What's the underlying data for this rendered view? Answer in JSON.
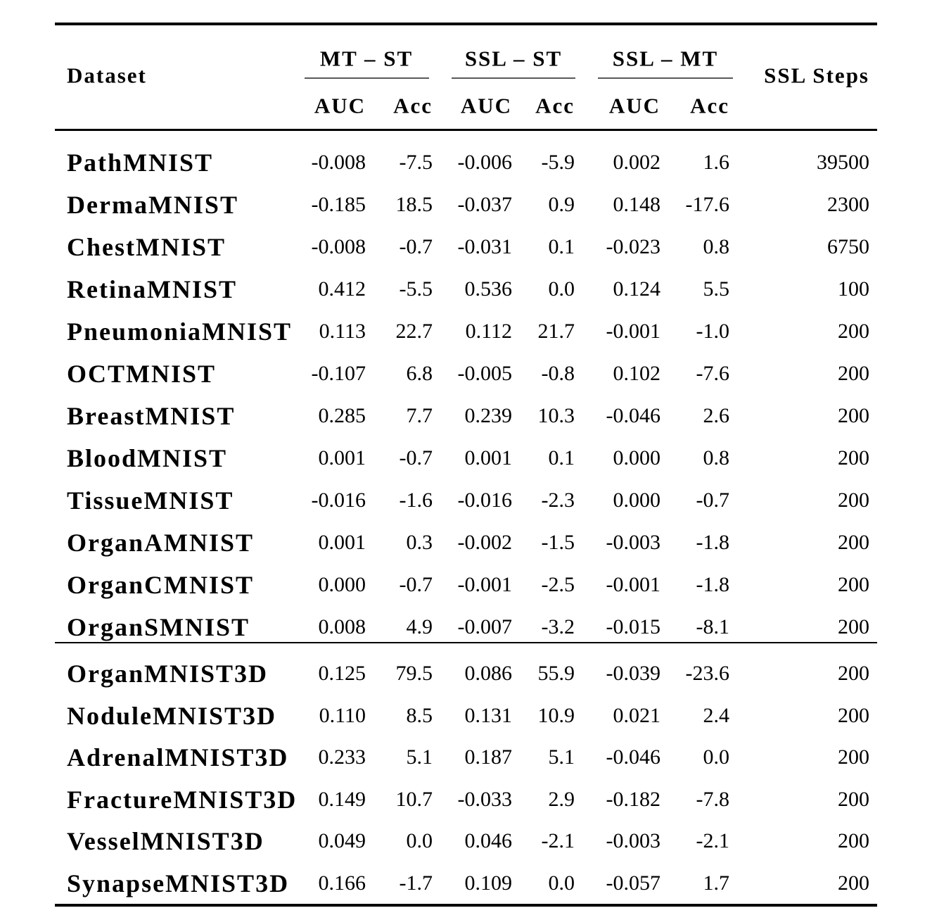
{
  "header": {
    "dataset_label": "Dataset",
    "groups": [
      {
        "label": "MT – ST"
      },
      {
        "label": "SSL – ST"
      },
      {
        "label": "SSL – MT"
      }
    ],
    "subheaders": [
      "AUC",
      "Acc",
      "AUC",
      "Acc",
      "AUC",
      "Acc"
    ],
    "steps_label": "SSL Steps"
  },
  "sections": [
    {
      "rows": [
        {
          "name": "PathMNIST",
          "values": [
            "-0.008",
            "-7.5",
            "-0.006",
            "-5.9",
            "0.002",
            "1.6"
          ],
          "steps": "39500"
        },
        {
          "name": "DermaMNIST",
          "values": [
            "-0.185",
            "18.5",
            "-0.037",
            "0.9",
            "0.148",
            "-17.6"
          ],
          "steps": "2300"
        },
        {
          "name": "ChestMNIST",
          "values": [
            "-0.008",
            "-0.7",
            "-0.031",
            "0.1",
            "-0.023",
            "0.8"
          ],
          "steps": "6750"
        },
        {
          "name": "RetinaMNIST",
          "values": [
            "0.412",
            "-5.5",
            "0.536",
            "0.0",
            "0.124",
            "5.5"
          ],
          "steps": "100"
        },
        {
          "name": "PneumoniaMNIST",
          "values": [
            "0.113",
            "22.7",
            "0.112",
            "21.7",
            "-0.001",
            "-1.0"
          ],
          "steps": "200"
        },
        {
          "name": "OCTMNIST",
          "values": [
            "-0.107",
            "6.8",
            "-0.005",
            "-0.8",
            "0.102",
            "-7.6"
          ],
          "steps": "200"
        },
        {
          "name": "BreastMNIST",
          "values": [
            "0.285",
            "7.7",
            "0.239",
            "10.3",
            "-0.046",
            "2.6"
          ],
          "steps": "200"
        },
        {
          "name": "BloodMNIST",
          "values": [
            "0.001",
            "-0.7",
            "0.001",
            "0.1",
            "0.000",
            "0.8"
          ],
          "steps": "200"
        },
        {
          "name": "TissueMNIST",
          "values": [
            "-0.016",
            "-1.6",
            "-0.016",
            "-2.3",
            "0.000",
            "-0.7"
          ],
          "steps": "200"
        },
        {
          "name": "OrganAMNIST",
          "values": [
            "0.001",
            "0.3",
            "-0.002",
            "-1.5",
            "-0.003",
            "-1.8"
          ],
          "steps": "200"
        },
        {
          "name": "OrganCMNIST",
          "values": [
            "0.000",
            "-0.7",
            "-0.001",
            "-2.5",
            "-0.001",
            "-1.8"
          ],
          "steps": "200"
        },
        {
          "name": "OrganSMNIST",
          "values": [
            "0.008",
            "4.9",
            "-0.007",
            "-3.2",
            "-0.015",
            "-8.1"
          ],
          "steps": "200"
        }
      ]
    },
    {
      "rows": [
        {
          "name": "OrganMNIST3D",
          "values": [
            "0.125",
            "79.5",
            "0.086",
            "55.9",
            "-0.039",
            "-23.6"
          ],
          "steps": "200"
        },
        {
          "name": "NoduleMNIST3D",
          "values": [
            "0.110",
            "8.5",
            "0.131",
            "10.9",
            "0.021",
            "2.4"
          ],
          "steps": "200"
        },
        {
          "name": "AdrenalMNIST3D",
          "values": [
            "0.233",
            "5.1",
            "0.187",
            "5.1",
            "-0.046",
            "0.0"
          ],
          "steps": "200"
        },
        {
          "name": "FractureMNIST3D",
          "values": [
            "0.149",
            "10.7",
            "-0.033",
            "2.9",
            "-0.182",
            "-7.8"
          ],
          "steps": "200"
        },
        {
          "name": "VesselMNIST3D",
          "values": [
            "0.049",
            "0.0",
            "0.046",
            "-2.1",
            "-0.003",
            "-2.1"
          ],
          "steps": "200"
        },
        {
          "name": "SynapseMNIST3D",
          "values": [
            "0.166",
            "-1.7",
            "0.109",
            "0.0",
            "-0.057",
            "1.7"
          ],
          "steps": "200"
        }
      ]
    }
  ],
  "colors": {
    "text": "#000000",
    "rule": "#000000",
    "cmidrule": "#595959",
    "background": "#ffffff"
  }
}
